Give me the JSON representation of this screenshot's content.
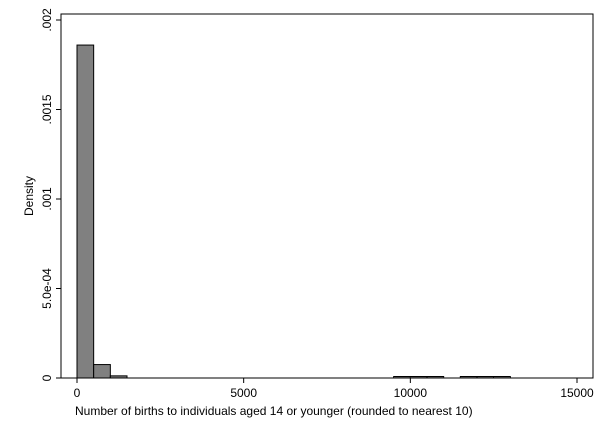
{
  "chart_data": {
    "type": "bar",
    "title": "",
    "xlabel": "Number of births to individuals aged 14 or younger (rounded to nearest 10)",
    "ylabel": "Density",
    "xlim": [
      -500,
      15500
    ],
    "ylim": [
      0,
      0.00203
    ],
    "grid": false,
    "legend": "none",
    "bar_color": "#808080",
    "bar_edge_color": "#000000",
    "x_ticks": [
      {
        "value": 0,
        "label": "0"
      },
      {
        "value": 5000,
        "label": "5000"
      },
      {
        "value": 10000,
        "label": "10000"
      },
      {
        "value": 15000,
        "label": "15000"
      }
    ],
    "y_ticks": [
      {
        "value": 0,
        "label": "0"
      },
      {
        "value": 0.0005,
        "label": "5.0e-04"
      },
      {
        "value": 0.001,
        "label": ".001"
      },
      {
        "value": 0.0015,
        "label": ".0015"
      },
      {
        "value": 0.002,
        "label": ".002"
      }
    ],
    "bin_width": 500,
    "bins": [
      {
        "x0": 0,
        "x1": 500,
        "density": 0.00186
      },
      {
        "x0": 500,
        "x1": 1000,
        "density": 7.5e-05
      },
      {
        "x0": 1000,
        "x1": 1500,
        "density": 1.2e-05
      },
      {
        "x0": 9500,
        "x1": 10000,
        "density": 5e-06
      },
      {
        "x0": 10000,
        "x1": 10500,
        "density": 7e-06
      },
      {
        "x0": 10500,
        "x1": 11000,
        "density": 3e-06
      },
      {
        "x0": 11500,
        "x1": 12000,
        "density": 3e-06
      },
      {
        "x0": 12000,
        "x1": 12500,
        "density": 3e-06
      },
      {
        "x0": 12500,
        "x1": 13000,
        "density": 6e-06
      }
    ]
  }
}
